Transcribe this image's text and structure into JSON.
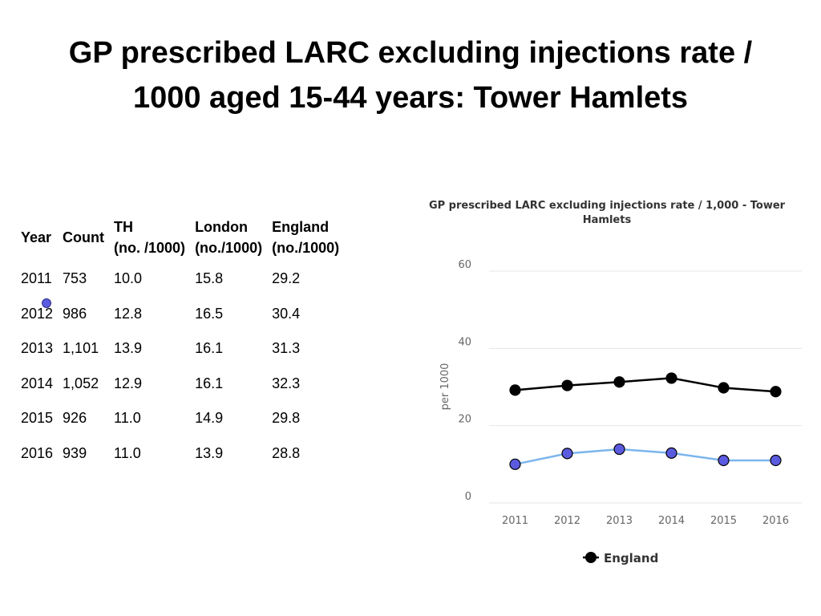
{
  "slide": {
    "title_line1": "GP prescribed LARC excluding injections rate /",
    "title_line2": "1000 aged 15-44 years: Tower Hamlets"
  },
  "table": {
    "headers": {
      "year": "Year",
      "count": "Count",
      "th_line1": "TH",
      "th_line2": "(no. /1000)",
      "london_line1": "London",
      "london_line2": "(no./1000)",
      "england_line1": "England",
      "england_line2": "(no./1000)"
    },
    "rows": [
      {
        "year": "2011",
        "count": "753",
        "th": "10.0",
        "london": "15.8",
        "england": "29.2"
      },
      {
        "year": "2012",
        "count": "986",
        "th": "12.8",
        "london": "16.5",
        "england": "30.4"
      },
      {
        "year": "2013",
        "count": "1,101",
        "th": "13.9",
        "london": "16.1",
        "england": "31.3"
      },
      {
        "year": "2014",
        "count": "1,052",
        "th": "12.9",
        "london": "16.1",
        "england": "32.3"
      },
      {
        "year": "2015",
        "count": "926",
        "th": "11.0",
        "london": "14.9",
        "england": "29.8"
      },
      {
        "year": "2016",
        "count": "939",
        "th": "11.0",
        "london": "13.9",
        "england": "28.8"
      }
    ]
  },
  "chart_data": {
    "type": "line",
    "title_line1": "GP prescribed LARC excluding injections rate / 1,000 - Tower",
    "title_line2": "Hamlets",
    "categories": [
      "2011",
      "2012",
      "2013",
      "2014",
      "2015",
      "2016"
    ],
    "ylabel": "per 1000",
    "xlabel": "",
    "ylim": [
      0,
      60
    ],
    "yticks": [
      0,
      20,
      40,
      60
    ],
    "grid": true,
    "legend_position": "bottom",
    "legend": [
      "England"
    ],
    "series": [
      {
        "name": "England",
        "values": [
          29.2,
          30.4,
          31.3,
          32.3,
          29.8,
          28.8
        ],
        "line_color": "#000000",
        "marker_color": "#000000",
        "in_legend": true
      },
      {
        "name": "Tower Hamlets",
        "values": [
          10.0,
          12.8,
          13.9,
          12.9,
          11.0,
          11.0
        ],
        "line_color": "#7cb5ec",
        "marker_color": "#5b5be0",
        "in_legend": false
      }
    ],
    "colors": {
      "grid": "#e6e6e6",
      "axis_text": "#666666",
      "title_text": "#333333"
    }
  }
}
